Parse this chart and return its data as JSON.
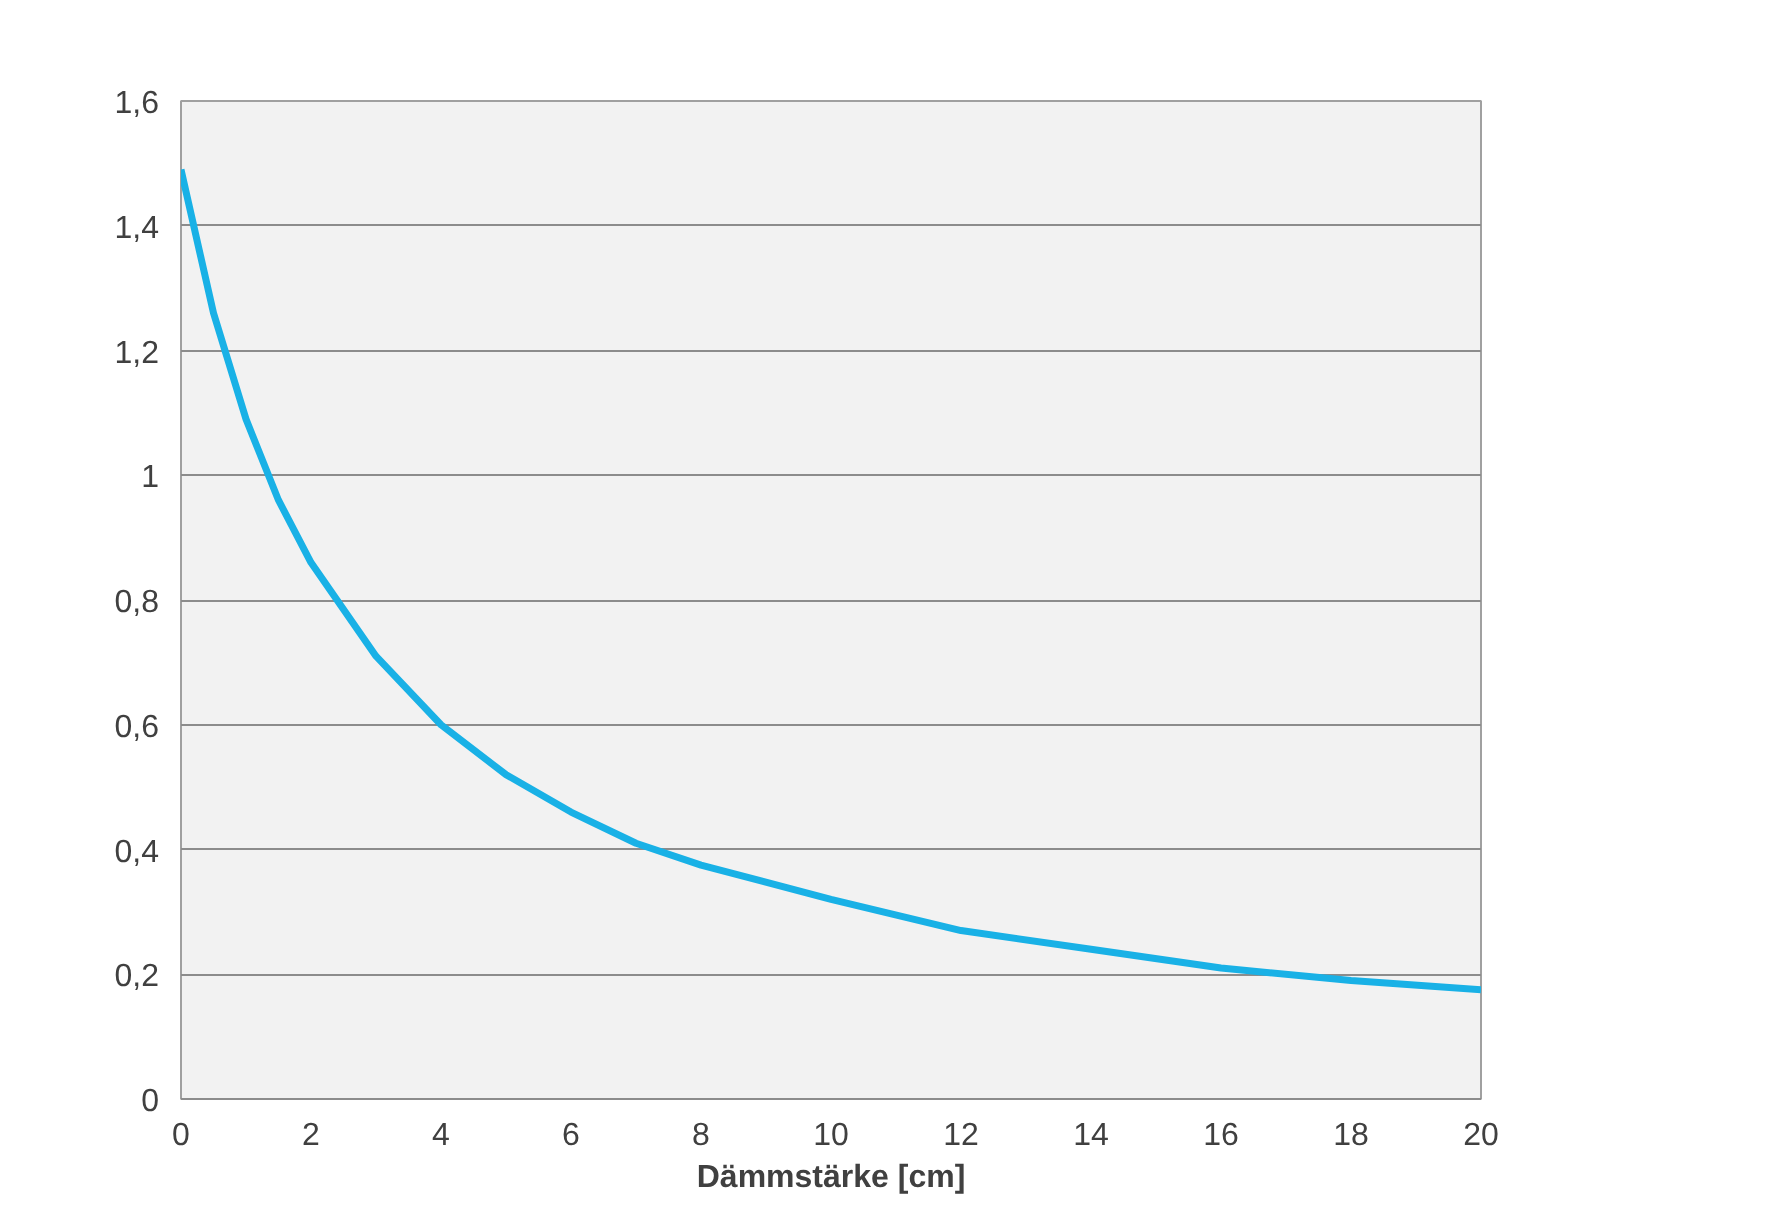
{
  "chart_data": {
    "type": "line",
    "xlabel": "Dämmstärke [cm]",
    "x": [
      0,
      0.5,
      1,
      1.5,
      2,
      3,
      4,
      5,
      6,
      7,
      8,
      10,
      12,
      14,
      16,
      18,
      20
    ],
    "series": [
      {
        "color": "#19b1e6",
        "values": [
          1.49,
          1.26,
          1.09,
          0.96,
          0.86,
          0.71,
          0.6,
          0.52,
          0.46,
          0.41,
          0.375,
          0.32,
          0.27,
          0.24,
          0.21,
          0.19,
          0.175
        ]
      }
    ],
    "xlim": [
      0,
      20
    ],
    "xticks": [
      0,
      2,
      4,
      6,
      8,
      10,
      12,
      14,
      16,
      18,
      20
    ],
    "ylim": [
      0,
      1.6
    ],
    "yticks": [
      {
        "value": 0,
        "label": "0"
      },
      {
        "value": 0.2,
        "label": "0,2"
      },
      {
        "value": 0.4,
        "label": "0,4"
      },
      {
        "value": 0.6,
        "label": "0,6"
      },
      {
        "value": 0.8,
        "label": "0,8"
      },
      {
        "value": 1,
        "label": "1"
      },
      {
        "value": 1.2,
        "label": "1,2"
      },
      {
        "value": 1.4,
        "label": "1,4"
      },
      {
        "value": 1.6,
        "label": "1,6"
      }
    ],
    "grid": "y",
    "marker": "none",
    "line_style": "solid"
  }
}
